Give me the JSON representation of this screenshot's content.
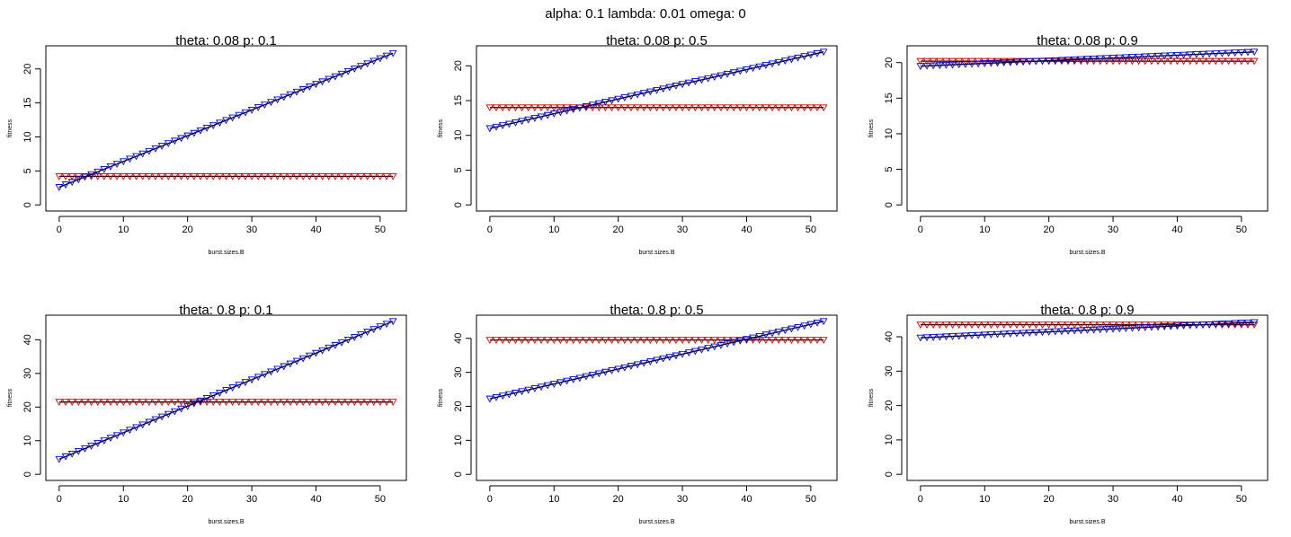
{
  "main_title": "alpha: 0.1 lambda: 0.01 omega: 0",
  "colors": {
    "flat_series": "#cc0000",
    "rising_series": "#0000cc",
    "line": "#000000"
  },
  "chart_data": [
    {
      "type": "line",
      "marker": "triangle-down",
      "title": "theta: 0.08 p: 0.1",
      "xlabel": "burst.sizes.B",
      "ylabel": "fitness",
      "xlim": [
        0,
        52
      ],
      "ylim": [
        0,
        22.5
      ],
      "xticks": [
        0,
        10,
        20,
        30,
        40,
        50
      ],
      "yticks": [
        0,
        5,
        10,
        15,
        20
      ],
      "x": {
        "start": 0,
        "end": 52,
        "step": 1
      },
      "series": [
        {
          "color": "red",
          "values_linear": {
            "x0": 0,
            "y0": 4.2,
            "x1": 52,
            "y1": 4.2
          }
        },
        {
          "color": "blue",
          "values_linear": {
            "x0": 0,
            "y0": 2.6,
            "x1": 52,
            "y1": 22.3
          }
        }
      ]
    },
    {
      "type": "line",
      "marker": "triangle-down",
      "title": "theta: 0.08 p: 0.5",
      "xlabel": "burst.sizes.B",
      "ylabel": "fitness",
      "xlim": [
        0,
        52
      ],
      "ylim": [
        0,
        22
      ],
      "xticks": [
        0,
        10,
        20,
        30,
        40,
        50
      ],
      "yticks": [
        0,
        5,
        10,
        15,
        20
      ],
      "x": {
        "start": 0,
        "end": 52,
        "step": 1
      },
      "series": [
        {
          "color": "red",
          "values_linear": {
            "x0": 0,
            "y0": 14.0,
            "x1": 52,
            "y1": 14.0
          }
        },
        {
          "color": "blue",
          "values_linear": {
            "x0": 0,
            "y0": 11.0,
            "x1": 52,
            "y1": 22.0
          }
        }
      ]
    },
    {
      "type": "line",
      "marker": "triangle-down",
      "title": "theta: 0.08 p: 0.9",
      "xlabel": "burst.sizes.B",
      "ylabel": "fitness",
      "xlim": [
        0,
        52
      ],
      "ylim": [
        0,
        21.5
      ],
      "xticks": [
        0,
        10,
        20,
        30,
        40,
        50
      ],
      "yticks": [
        0,
        5,
        10,
        15,
        20
      ],
      "x": {
        "start": 0,
        "end": 52,
        "step": 1
      },
      "series": [
        {
          "color": "red",
          "values_linear": {
            "x0": 0,
            "y0": 20.2,
            "x1": 52,
            "y1": 20.2
          }
        },
        {
          "color": "blue",
          "values_linear": {
            "x0": 0,
            "y0": 19.5,
            "x1": 52,
            "y1": 21.5
          }
        }
      ]
    },
    {
      "type": "line",
      "marker": "triangle-down",
      "title": "theta: 0.8 p: 0.1",
      "xlabel": "burst.sizes.B",
      "ylabel": "fitness",
      "xlim": [
        0,
        52
      ],
      "ylim": [
        0,
        45.5
      ],
      "xticks": [
        0,
        10,
        20,
        30,
        40,
        50
      ],
      "yticks": [
        0,
        10,
        20,
        30,
        40
      ],
      "x": {
        "start": 0,
        "end": 52,
        "step": 1
      },
      "series": [
        {
          "color": "red",
          "values_linear": {
            "x0": 0,
            "y0": 21.5,
            "x1": 52,
            "y1": 21.5
          }
        },
        {
          "color": "blue",
          "values_linear": {
            "x0": 0,
            "y0": 4.5,
            "x1": 52,
            "y1": 45.5
          }
        }
      ]
    },
    {
      "type": "line",
      "marker": "triangle-down",
      "title": "theta: 0.8 p: 0.5",
      "xlabel": "burst.sizes.B",
      "ylabel": "fitness",
      "xlim": [
        0,
        52
      ],
      "ylim": [
        0,
        45
      ],
      "xticks": [
        0,
        10,
        20,
        30,
        40,
        50
      ],
      "yticks": [
        0,
        10,
        20,
        30,
        40
      ],
      "x": {
        "start": 0,
        "end": 52,
        "step": 1
      },
      "series": [
        {
          "color": "red",
          "values_linear": {
            "x0": 0,
            "y0": 39.5,
            "x1": 52,
            "y1": 39.5
          }
        },
        {
          "color": "blue",
          "values_linear": {
            "x0": 0,
            "y0": 22.2,
            "x1": 52,
            "y1": 45.0
          }
        }
      ]
    },
    {
      "type": "line",
      "marker": "triangle-down",
      "title": "theta: 0.8 p: 0.9",
      "xlabel": "burst.sizes.B",
      "ylabel": "fitness",
      "xlim": [
        0,
        52
      ],
      "ylim": [
        0,
        44.5
      ],
      "xticks": [
        0,
        10,
        20,
        30,
        40,
        50
      ],
      "yticks": [
        0,
        10,
        20,
        30,
        40
      ],
      "x": {
        "start": 0,
        "end": 52,
        "step": 1
      },
      "series": [
        {
          "color": "red",
          "values_linear": {
            "x0": 0,
            "y0": 43.5,
            "x1": 52,
            "y1": 43.5
          }
        },
        {
          "color": "blue",
          "values_linear": {
            "x0": 0,
            "y0": 39.7,
            "x1": 52,
            "y1": 44.2
          }
        }
      ]
    }
  ]
}
